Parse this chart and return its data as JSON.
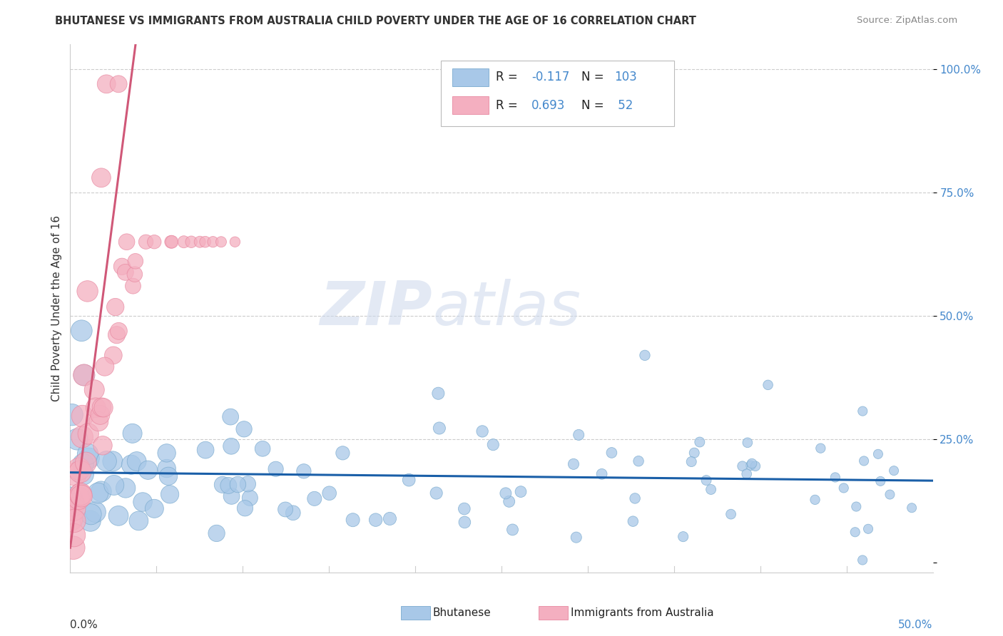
{
  "title": "BHUTANESE VS IMMIGRANTS FROM AUSTRALIA CHILD POVERTY UNDER THE AGE OF 16 CORRELATION CHART",
  "source": "Source: ZipAtlas.com",
  "ylabel": "Child Poverty Under the Age of 16",
  "xlim": [
    0.0,
    0.5
  ],
  "ylim": [
    -0.02,
    1.05
  ],
  "blue_R": -0.117,
  "blue_N": 103,
  "pink_R": 0.693,
  "pink_N": 52,
  "blue_color": "#a8c8e8",
  "pink_color": "#f4afc0",
  "blue_edge_color": "#7aaace",
  "pink_edge_color": "#e888a0",
  "blue_line_color": "#1a5fa8",
  "pink_line_color": "#d05878",
  "legend_label_blue": "Bhutanese",
  "legend_label_pink": "Immigrants from Australia",
  "watermark_zip": "ZIP",
  "watermark_atlas": "atlas",
  "background_color": "#ffffff",
  "grid_color": "#cccccc",
  "axis_color": "#cccccc",
  "title_color": "#333333",
  "source_color": "#888888",
  "ytick_color": "#4488cc",
  "xtick_label_left_color": "#333333",
  "xtick_label_right_color": "#4488cc"
}
